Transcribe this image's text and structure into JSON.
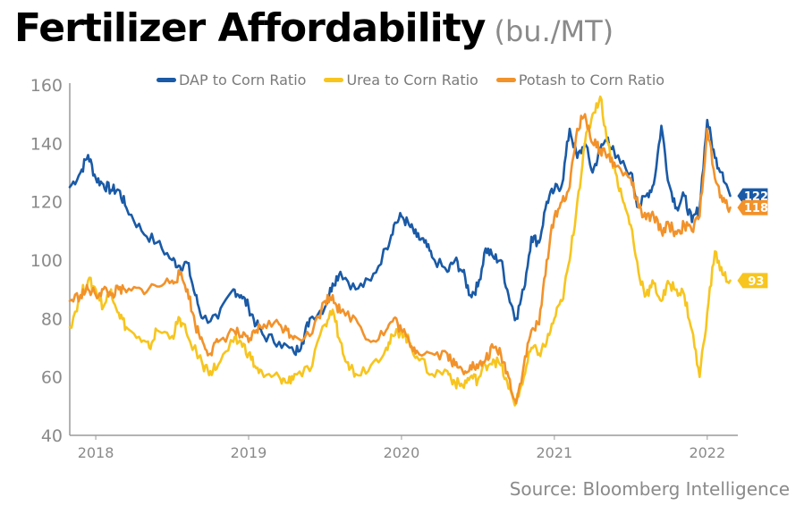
{
  "header": {
    "title": "Fertilizer Affordability",
    "subtitle": "(bu./MT)"
  },
  "footer": {
    "source": "Source: Bloomberg Intelligence"
  },
  "chart_data": {
    "type": "line",
    "title": "Fertilizer Affordability",
    "subtitle": "(bu./MT)",
    "xlabel": "",
    "ylabel": "",
    "x_range": [
      2017.83,
      2022.2
    ],
    "ylim": [
      40,
      160
    ],
    "y_ticks": [
      "40",
      "60",
      "80",
      "100",
      "120",
      "140",
      "160"
    ],
    "x_ticks": [
      {
        "label": "2018",
        "x": 2018.0
      },
      {
        "label": "2019",
        "x": 2019.0
      },
      {
        "label": "2020",
        "x": 2020.0
      },
      {
        "label": "2021",
        "x": 2021.0
      },
      {
        "label": "2022",
        "x": 2022.0
      }
    ],
    "grid": false,
    "legend_position": "top",
    "series": [
      {
        "name": "DAP to Corn Ratio",
        "color": "#1a5aa6",
        "end_label": "122",
        "points": [
          [
            2017.83,
            125
          ],
          [
            2017.9,
            130
          ],
          [
            2017.95,
            136
          ],
          [
            2018.0,
            128
          ],
          [
            2018.05,
            126
          ],
          [
            2018.1,
            124
          ],
          [
            2018.15,
            124
          ],
          [
            2018.2,
            118
          ],
          [
            2018.3,
            110
          ],
          [
            2018.4,
            106
          ],
          [
            2018.5,
            100
          ],
          [
            2018.55,
            98
          ],
          [
            2018.6,
            99
          ],
          [
            2018.65,
            88
          ],
          [
            2018.7,
            80
          ],
          [
            2018.8,
            80
          ],
          [
            2018.9,
            90
          ],
          [
            2018.95,
            88
          ],
          [
            2019.0,
            84
          ],
          [
            2019.05,
            78
          ],
          [
            2019.1,
            74
          ],
          [
            2019.2,
            72
          ],
          [
            2019.3,
            68
          ],
          [
            2019.35,
            72
          ],
          [
            2019.4,
            80
          ],
          [
            2019.5,
            84
          ],
          [
            2019.55,
            92
          ],
          [
            2019.6,
            96
          ],
          [
            2019.7,
            90
          ],
          [
            2019.8,
            93
          ],
          [
            2019.9,
            104
          ],
          [
            2019.95,
            112
          ],
          [
            2020.0,
            115
          ],
          [
            2020.05,
            112
          ],
          [
            2020.1,
            108
          ],
          [
            2020.15,
            106
          ],
          [
            2020.2,
            101
          ],
          [
            2020.3,
            96
          ],
          [
            2020.35,
            100
          ],
          [
            2020.4,
            96
          ],
          [
            2020.45,
            88
          ],
          [
            2020.5,
            91
          ],
          [
            2020.55,
            104
          ],
          [
            2020.6,
            101
          ],
          [
            2020.65,
            100
          ],
          [
            2020.7,
            88
          ],
          [
            2020.75,
            80
          ],
          [
            2020.8,
            90
          ],
          [
            2020.85,
            108
          ],
          [
            2020.9,
            106
          ],
          [
            2020.95,
            120
          ],
          [
            2021.0,
            124
          ],
          [
            2021.05,
            126
          ],
          [
            2021.1,
            145
          ],
          [
            2021.15,
            135
          ],
          [
            2021.2,
            140
          ],
          [
            2021.25,
            130
          ],
          [
            2021.3,
            138
          ],
          [
            2021.35,
            142
          ],
          [
            2021.4,
            135
          ],
          [
            2021.5,
            130
          ],
          [
            2021.55,
            118
          ],
          [
            2021.6,
            122
          ],
          [
            2021.65,
            126
          ],
          [
            2021.7,
            146
          ],
          [
            2021.75,
            126
          ],
          [
            2021.8,
            118
          ],
          [
            2021.85,
            122
          ],
          [
            2021.9,
            113
          ],
          [
            2021.95,
            118
          ],
          [
            2022.0,
            148
          ],
          [
            2022.05,
            135
          ],
          [
            2022.1,
            130
          ],
          [
            2022.15,
            122
          ]
        ]
      },
      {
        "name": "Urea to Corn Ratio",
        "color": "#f7c51e",
        "end_label": "93",
        "points": [
          [
            2017.83,
            77
          ],
          [
            2017.9,
            88
          ],
          [
            2017.95,
            93
          ],
          [
            2018.0,
            90
          ],
          [
            2018.05,
            84
          ],
          [
            2018.1,
            90
          ],
          [
            2018.15,
            82
          ],
          [
            2018.2,
            77
          ],
          [
            2018.3,
            72
          ],
          [
            2018.35,
            70
          ],
          [
            2018.4,
            76
          ],
          [
            2018.5,
            74
          ],
          [
            2018.55,
            80
          ],
          [
            2018.6,
            74
          ],
          [
            2018.7,
            64
          ],
          [
            2018.75,
            62
          ],
          [
            2018.8,
            64
          ],
          [
            2018.9,
            72
          ],
          [
            2018.95,
            72
          ],
          [
            2019.0,
            68
          ],
          [
            2019.05,
            63
          ],
          [
            2019.1,
            60
          ],
          [
            2019.2,
            60
          ],
          [
            2019.25,
            58
          ],
          [
            2019.3,
            61
          ],
          [
            2019.4,
            62
          ],
          [
            2019.5,
            78
          ],
          [
            2019.55,
            83
          ],
          [
            2019.6,
            72
          ],
          [
            2019.65,
            65
          ],
          [
            2019.7,
            61
          ],
          [
            2019.8,
            64
          ],
          [
            2019.9,
            70
          ],
          [
            2019.95,
            74
          ],
          [
            2020.0,
            76
          ],
          [
            2020.05,
            72
          ],
          [
            2020.1,
            67
          ],
          [
            2020.2,
            61
          ],
          [
            2020.3,
            62
          ],
          [
            2020.35,
            58
          ],
          [
            2020.4,
            57
          ],
          [
            2020.45,
            60
          ],
          [
            2020.5,
            59
          ],
          [
            2020.55,
            64
          ],
          [
            2020.6,
            66
          ],
          [
            2020.65,
            64
          ],
          [
            2020.7,
            56
          ],
          [
            2020.75,
            51
          ],
          [
            2020.8,
            60
          ],
          [
            2020.85,
            70
          ],
          [
            2020.9,
            68
          ],
          [
            2020.95,
            72
          ],
          [
            2021.0,
            80
          ],
          [
            2021.05,
            86
          ],
          [
            2021.1,
            100
          ],
          [
            2021.15,
            120
          ],
          [
            2021.2,
            140
          ],
          [
            2021.25,
            150
          ],
          [
            2021.3,
            156
          ],
          [
            2021.35,
            140
          ],
          [
            2021.4,
            130
          ],
          [
            2021.45,
            120
          ],
          [
            2021.5,
            112
          ],
          [
            2021.55,
            96
          ],
          [
            2021.6,
            88
          ],
          [
            2021.65,
            92
          ],
          [
            2021.7,
            86
          ],
          [
            2021.75,
            92
          ],
          [
            2021.8,
            90
          ],
          [
            2021.85,
            88
          ],
          [
            2021.9,
            76
          ],
          [
            2021.95,
            60
          ],
          [
            2022.0,
            82
          ],
          [
            2022.05,
            103
          ],
          [
            2022.1,
            95
          ],
          [
            2022.15,
            93
          ]
        ]
      },
      {
        "name": "Potash to Corn Ratio",
        "color": "#f2922a",
        "end_label": "118",
        "points": [
          [
            2017.83,
            86
          ],
          [
            2017.9,
            88
          ],
          [
            2017.95,
            90
          ],
          [
            2018.0,
            88
          ],
          [
            2018.05,
            90
          ],
          [
            2018.1,
            88
          ],
          [
            2018.15,
            90
          ],
          [
            2018.2,
            89
          ],
          [
            2018.3,
            90
          ],
          [
            2018.4,
            91
          ],
          [
            2018.5,
            93
          ],
          [
            2018.55,
            95
          ],
          [
            2018.6,
            90
          ],
          [
            2018.65,
            78
          ],
          [
            2018.7,
            72
          ],
          [
            2018.75,
            68
          ],
          [
            2018.8,
            72
          ],
          [
            2018.9,
            76
          ],
          [
            2018.95,
            74
          ],
          [
            2019.0,
            72
          ],
          [
            2019.05,
            76
          ],
          [
            2019.1,
            78
          ],
          [
            2019.2,
            78
          ],
          [
            2019.25,
            76
          ],
          [
            2019.3,
            74
          ],
          [
            2019.4,
            74
          ],
          [
            2019.5,
            86
          ],
          [
            2019.55,
            88
          ],
          [
            2019.6,
            82
          ],
          [
            2019.7,
            80
          ],
          [
            2019.8,
            72
          ],
          [
            2019.9,
            76
          ],
          [
            2019.95,
            80
          ],
          [
            2020.0,
            76
          ],
          [
            2020.05,
            72
          ],
          [
            2020.1,
            69
          ],
          [
            2020.2,
            68
          ],
          [
            2020.3,
            68
          ],
          [
            2020.35,
            64
          ],
          [
            2020.4,
            62
          ],
          [
            2020.45,
            64
          ],
          [
            2020.5,
            63
          ],
          [
            2020.55,
            66
          ],
          [
            2020.6,
            70
          ],
          [
            2020.65,
            68
          ],
          [
            2020.7,
            60
          ],
          [
            2020.75,
            51
          ],
          [
            2020.8,
            64
          ],
          [
            2020.85,
            76
          ],
          [
            2020.9,
            78
          ],
          [
            2020.95,
            100
          ],
          [
            2021.0,
            115
          ],
          [
            2021.05,
            120
          ],
          [
            2021.1,
            125
          ],
          [
            2021.15,
            145
          ],
          [
            2021.2,
            150
          ],
          [
            2021.25,
            140
          ],
          [
            2021.3,
            138
          ],
          [
            2021.35,
            136
          ],
          [
            2021.4,
            132
          ],
          [
            2021.5,
            128
          ],
          [
            2021.55,
            118
          ],
          [
            2021.6,
            114
          ],
          [
            2021.65,
            115
          ],
          [
            2021.7,
            110
          ],
          [
            2021.75,
            112
          ],
          [
            2021.8,
            109
          ],
          [
            2021.85,
            112
          ],
          [
            2021.9,
            110
          ],
          [
            2021.95,
            115
          ],
          [
            2022.0,
            145
          ],
          [
            2022.05,
            128
          ],
          [
            2022.1,
            120
          ],
          [
            2022.15,
            118
          ]
        ]
      }
    ]
  }
}
